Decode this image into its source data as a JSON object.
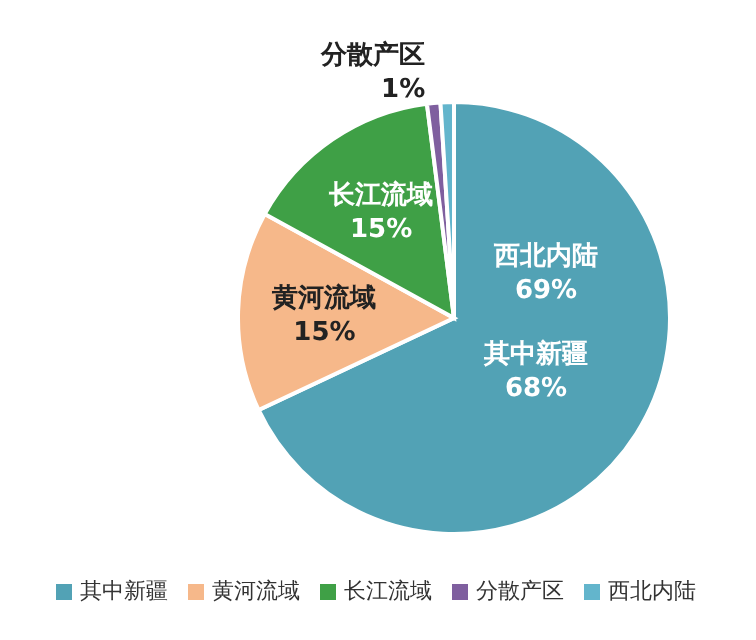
{
  "chart_data": {
    "type": "pie",
    "categories": [
      "其中新疆",
      "黄河流域",
      "长江流域",
      "分散产区",
      "西北内陆"
    ],
    "values": [
      68,
      15,
      15,
      1,
      1
    ],
    "colors": [
      "#52a2b5",
      "#f6b88a",
      "#3fa046",
      "#7f5f9f",
      "#63b5cc"
    ],
    "value_labels": [
      "68%",
      "15%",
      "15%",
      "1%",
      null
    ],
    "annotations": [
      "西北内陆\n69%"
    ],
    "legend": "bottom"
  }
}
